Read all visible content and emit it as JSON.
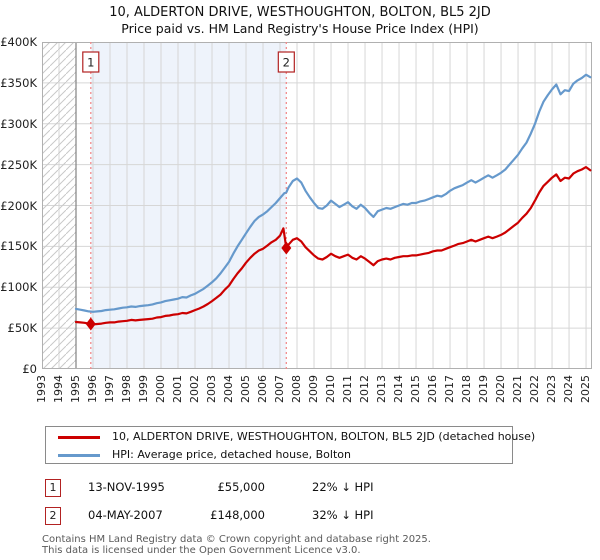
{
  "title": "10, ALDERTON DRIVE, WESTHOUGHTON, BOLTON, BL5 2JD",
  "subtitle": "Price paid vs. HM Land Registry's House Price Index (HPI)",
  "chart_data": {
    "type": "line",
    "x_axis": {
      "range": [
        1993,
        2025.35
      ],
      "ticks": [
        1993,
        1994,
        1995,
        1996,
        1997,
        1998,
        1999,
        2000,
        2001,
        2002,
        2003,
        2004,
        2005,
        2006,
        2007,
        2008,
        2009,
        2010,
        2011,
        2012,
        2013,
        2014,
        2015,
        2016,
        2017,
        2018,
        2019,
        2020,
        2021,
        2022,
        2023,
        2024,
        2025
      ]
    },
    "y_axis": {
      "range": [
        0,
        400000
      ],
      "unit": "GBP",
      "ticks": [
        {
          "v": 0,
          "label": "£0"
        },
        {
          "v": 50000,
          "label": "£50K"
        },
        {
          "v": 100000,
          "label": "£100K"
        },
        {
          "v": 150000,
          "label": "£150K"
        },
        {
          "v": 200000,
          "label": "£200K"
        },
        {
          "v": 250000,
          "label": "£250K"
        },
        {
          "v": 300000,
          "label": "£300K"
        },
        {
          "v": 350000,
          "label": "£350K"
        },
        {
          "v": 400000,
          "label": "£400K"
        }
      ]
    },
    "grid": true,
    "hatch_before": 1995.0,
    "shade_between": [
      1995.87,
      2007.37
    ],
    "colors": {
      "grid": "#d6d6d6",
      "shade": "#eef3fb",
      "hatch": "#c9c9c9",
      "border": "#b0b0b0",
      "data_start_line": "#828282",
      "sale_dash": "#f28b8b",
      "marker_box_border": "#b22222"
    },
    "series": [
      {
        "name": "10, ALDERTON DRIVE, WESTHOUGHTON, BOLTON, BL5 2JD (detached house)",
        "color": "#cc0000",
        "points": [
          [
            1995,
            57500
          ],
          [
            1995.25,
            57000
          ],
          [
            1995.5,
            56500
          ],
          [
            1995.87,
            55000
          ],
          [
            1996,
            54500
          ],
          [
            1996.25,
            55000
          ],
          [
            1996.5,
            55500
          ],
          [
            1996.75,
            56500
          ],
          [
            1997,
            57000
          ],
          [
            1997.25,
            57000
          ],
          [
            1997.5,
            58000
          ],
          [
            1997.75,
            58500
          ],
          [
            1998,
            59000
          ],
          [
            1998.25,
            60000
          ],
          [
            1998.5,
            59500
          ],
          [
            1998.75,
            60000
          ],
          [
            1999,
            60500
          ],
          [
            1999.25,
            61000
          ],
          [
            1999.5,
            61500
          ],
          [
            1999.75,
            63000
          ],
          [
            2000,
            63500
          ],
          [
            2000.25,
            65000
          ],
          [
            2000.5,
            65500
          ],
          [
            2000.75,
            66500
          ],
          [
            2001,
            67000
          ],
          [
            2001.25,
            68500
          ],
          [
            2001.5,
            68000
          ],
          [
            2001.75,
            70000
          ],
          [
            2002,
            72000
          ],
          [
            2002.25,
            74000
          ],
          [
            2002.5,
            76500
          ],
          [
            2002.75,
            79500
          ],
          [
            2003,
            83000
          ],
          [
            2003.25,
            87000
          ],
          [
            2003.5,
            91000
          ],
          [
            2003.75,
            97000
          ],
          [
            2004,
            102000
          ],
          [
            2004.25,
            110000
          ],
          [
            2004.5,
            117000
          ],
          [
            2004.75,
            123000
          ],
          [
            2005,
            130000
          ],
          [
            2005.25,
            136000
          ],
          [
            2005.5,
            141000
          ],
          [
            2005.75,
            145000
          ],
          [
            2006,
            147000
          ],
          [
            2006.25,
            151000
          ],
          [
            2006.5,
            155000
          ],
          [
            2006.75,
            158000
          ],
          [
            2007,
            163000
          ],
          [
            2007.2,
            172000
          ],
          [
            2007.37,
            148000
          ],
          [
            2007.5,
            152000
          ],
          [
            2007.75,
            158000
          ],
          [
            2008,
            160000
          ],
          [
            2008.25,
            156000
          ],
          [
            2008.5,
            149000
          ],
          [
            2008.75,
            144000
          ],
          [
            2009,
            139000
          ],
          [
            2009.25,
            135000
          ],
          [
            2009.5,
            134000
          ],
          [
            2009.75,
            137000
          ],
          [
            2010,
            141000
          ],
          [
            2010.25,
            138000
          ],
          [
            2010.5,
            136000
          ],
          [
            2010.75,
            138000
          ],
          [
            2011,
            140000
          ],
          [
            2011.25,
            136000
          ],
          [
            2011.5,
            134000
          ],
          [
            2011.75,
            138000
          ],
          [
            2012,
            135000
          ],
          [
            2012.25,
            131000
          ],
          [
            2012.5,
            127000
          ],
          [
            2012.75,
            132000
          ],
          [
            2013,
            134000
          ],
          [
            2013.25,
            135000
          ],
          [
            2013.5,
            134000
          ],
          [
            2013.75,
            136000
          ],
          [
            2014,
            137000
          ],
          [
            2014.25,
            138000
          ],
          [
            2014.5,
            138000
          ],
          [
            2014.75,
            139000
          ],
          [
            2015,
            139000
          ],
          [
            2015.25,
            140000
          ],
          [
            2015.5,
            141000
          ],
          [
            2015.75,
            142000
          ],
          [
            2016,
            144000
          ],
          [
            2016.25,
            145000
          ],
          [
            2016.5,
            145000
          ],
          [
            2016.75,
            147000
          ],
          [
            2017,
            149000
          ],
          [
            2017.25,
            151000
          ],
          [
            2017.5,
            153000
          ],
          [
            2017.75,
            154000
          ],
          [
            2018,
            156000
          ],
          [
            2018.25,
            158000
          ],
          [
            2018.5,
            156000
          ],
          [
            2018.75,
            158000
          ],
          [
            2019,
            160000
          ],
          [
            2019.25,
            162000
          ],
          [
            2019.5,
            160000
          ],
          [
            2019.75,
            162000
          ],
          [
            2020,
            164000
          ],
          [
            2020.25,
            167000
          ],
          [
            2020.5,
            171000
          ],
          [
            2020.75,
            175000
          ],
          [
            2021,
            179000
          ],
          [
            2021.25,
            185000
          ],
          [
            2021.5,
            190000
          ],
          [
            2021.75,
            197000
          ],
          [
            2022,
            206000
          ],
          [
            2022.25,
            216000
          ],
          [
            2022.5,
            224000
          ],
          [
            2022.75,
            229000
          ],
          [
            2023,
            234000
          ],
          [
            2023.25,
            238000
          ],
          [
            2023.5,
            230000
          ],
          [
            2023.75,
            234000
          ],
          [
            2024,
            233000
          ],
          [
            2024.25,
            239000
          ],
          [
            2024.5,
            242000
          ],
          [
            2024.75,
            244000
          ],
          [
            2025,
            247000
          ],
          [
            2025.25,
            243000
          ]
        ]
      },
      {
        "name": "HPI: Average price, detached house, Bolton",
        "color": "#6699cc",
        "points": [
          [
            1995,
            73500
          ],
          [
            1995.25,
            72500
          ],
          [
            1995.5,
            71500
          ],
          [
            1995.75,
            70500
          ],
          [
            1996,
            70000
          ],
          [
            1996.25,
            70500
          ],
          [
            1996.5,
            71000
          ],
          [
            1996.75,
            72000
          ],
          [
            1997,
            72500
          ],
          [
            1997.25,
            73000
          ],
          [
            1997.5,
            74000
          ],
          [
            1997.75,
            75000
          ],
          [
            1998,
            75500
          ],
          [
            1998.25,
            76500
          ],
          [
            1998.5,
            76000
          ],
          [
            1998.75,
            77000
          ],
          [
            1999,
            77500
          ],
          [
            1999.25,
            78000
          ],
          [
            1999.5,
            79000
          ],
          [
            1999.75,
            80500
          ],
          [
            2000,
            81500
          ],
          [
            2000.25,
            83000
          ],
          [
            2000.5,
            84000
          ],
          [
            2000.75,
            85000
          ],
          [
            2001,
            86000
          ],
          [
            2001.25,
            88000
          ],
          [
            2001.5,
            87500
          ],
          [
            2001.75,
            90000
          ],
          [
            2002,
            92000
          ],
          [
            2002.25,
            95000
          ],
          [
            2002.5,
            98000
          ],
          [
            2002.75,
            102000
          ],
          [
            2003,
            106000
          ],
          [
            2003.25,
            111000
          ],
          [
            2003.5,
            117000
          ],
          [
            2003.75,
            124000
          ],
          [
            2004,
            131000
          ],
          [
            2004.25,
            141000
          ],
          [
            2004.5,
            150000
          ],
          [
            2004.75,
            158000
          ],
          [
            2005,
            166000
          ],
          [
            2005.25,
            174000
          ],
          [
            2005.5,
            181000
          ],
          [
            2005.75,
            186000
          ],
          [
            2006,
            189000
          ],
          [
            2006.25,
            193000
          ],
          [
            2006.5,
            198000
          ],
          [
            2006.75,
            203000
          ],
          [
            2007,
            209000
          ],
          [
            2007.25,
            215000
          ],
          [
            2007.37,
            216000
          ],
          [
            2007.5,
            222000
          ],
          [
            2007.75,
            230000
          ],
          [
            2008,
            233000
          ],
          [
            2008.25,
            228000
          ],
          [
            2008.5,
            218000
          ],
          [
            2008.75,
            210000
          ],
          [
            2009,
            203000
          ],
          [
            2009.25,
            197000
          ],
          [
            2009.5,
            196000
          ],
          [
            2009.75,
            200000
          ],
          [
            2010,
            206000
          ],
          [
            2010.25,
            202000
          ],
          [
            2010.5,
            198000
          ],
          [
            2010.75,
            201000
          ],
          [
            2011,
            204000
          ],
          [
            2011.25,
            199000
          ],
          [
            2011.5,
            196000
          ],
          [
            2011.75,
            201000
          ],
          [
            2012,
            197000
          ],
          [
            2012.25,
            191000
          ],
          [
            2012.5,
            186000
          ],
          [
            2012.75,
            193000
          ],
          [
            2013,
            195000
          ],
          [
            2013.25,
            197000
          ],
          [
            2013.5,
            196000
          ],
          [
            2013.75,
            198000
          ],
          [
            2014,
            200000
          ],
          [
            2014.25,
            202000
          ],
          [
            2014.5,
            201000
          ],
          [
            2014.75,
            203000
          ],
          [
            2015,
            203000
          ],
          [
            2015.25,
            205000
          ],
          [
            2015.5,
            206000
          ],
          [
            2015.75,
            208000
          ],
          [
            2016,
            210000
          ],
          [
            2016.25,
            212000
          ],
          [
            2016.5,
            211000
          ],
          [
            2016.75,
            214000
          ],
          [
            2017,
            218000
          ],
          [
            2017.25,
            221000
          ],
          [
            2017.5,
            223000
          ],
          [
            2017.75,
            225000
          ],
          [
            2018,
            228000
          ],
          [
            2018.25,
            231000
          ],
          [
            2018.5,
            228000
          ],
          [
            2018.75,
            231000
          ],
          [
            2019,
            234000
          ],
          [
            2019.25,
            237000
          ],
          [
            2019.5,
            234000
          ],
          [
            2019.75,
            237000
          ],
          [
            2020,
            240000
          ],
          [
            2020.25,
            244000
          ],
          [
            2020.5,
            250000
          ],
          [
            2020.75,
            256000
          ],
          [
            2021,
            262000
          ],
          [
            2021.25,
            270000
          ],
          [
            2021.5,
            277000
          ],
          [
            2021.75,
            288000
          ],
          [
            2022,
            300000
          ],
          [
            2022.25,
            315000
          ],
          [
            2022.5,
            327000
          ],
          [
            2022.75,
            335000
          ],
          [
            2023,
            342000
          ],
          [
            2023.25,
            348000
          ],
          [
            2023.5,
            336000
          ],
          [
            2023.75,
            341000
          ],
          [
            2024,
            340000
          ],
          [
            2024.25,
            349000
          ],
          [
            2024.5,
            353000
          ],
          [
            2024.75,
            356000
          ],
          [
            2025,
            360000
          ],
          [
            2025.25,
            357000
          ]
        ]
      }
    ],
    "sales": [
      {
        "label": "1",
        "x": 1995.87,
        "price": 55000
      },
      {
        "label": "2",
        "x": 2007.37,
        "price": 148000
      }
    ]
  },
  "legend": {
    "items": [
      {
        "label": "10, ALDERTON DRIVE, WESTHOUGHTON, BOLTON, BL5 2JD (detached house)"
      },
      {
        "label": "HPI: Average price, detached house, Bolton"
      }
    ]
  },
  "annotations": [
    {
      "num": "1",
      "date": "13-NOV-1995",
      "price": "£55,000",
      "hpi": "22% ↓ HPI"
    },
    {
      "num": "2",
      "date": "04-MAY-2007",
      "price": "£148,000",
      "hpi": "32% ↓ HPI"
    }
  ],
  "footer": {
    "line1": "Contains HM Land Registry data © Crown copyright and database right 2025.",
    "line2": "This data is licensed under the Open Government Licence v3.0."
  }
}
